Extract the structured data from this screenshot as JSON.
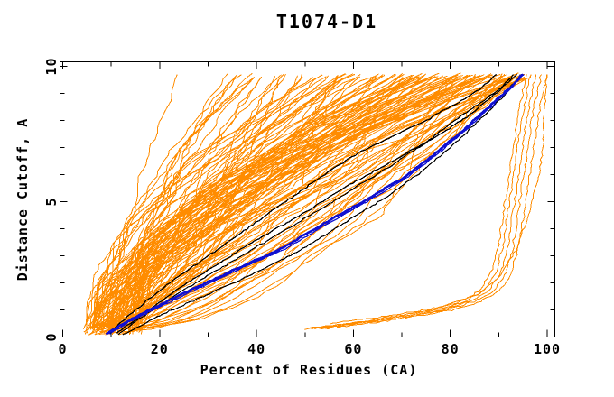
{
  "page": {
    "background_color": "#ffffff"
  },
  "chart_data": {
    "type": "line",
    "title": "T1074-D1",
    "xlabel": "Percent of Residues (CA)",
    "ylabel": "Distance Cutoff, A",
    "xlim": [
      0,
      100
    ],
    "ylim": [
      0,
      10
    ],
    "x_major_ticks": [
      0,
      20,
      40,
      60,
      80,
      100
    ],
    "x_minor_tick_step": 10,
    "y_major_ticks": [
      0,
      5,
      10
    ],
    "y_minor_tick_step": 1,
    "grid": false,
    "legend_position": "none",
    "frame": "full-box-with-inward-ticks",
    "colors": {
      "ensemble_orange": "#ff8c00",
      "highlight_blue": "#1010d0",
      "highlight_black": "#000000",
      "frame_black": "#000000",
      "background": "#ffffff"
    },
    "description": "Cumulative curves: percent of CA residues (x) under each distance cutoff in Angstroms (y). Large pool of thin orange model curves, a low bundle of orange outlier curves at lower right, three/four black curves and one thick blue curve highlighted.",
    "highlight_series": [
      {
        "name": "blue-main",
        "color": "#1010d0",
        "width": 2.6,
        "points": [
          [
            9,
            0.1
          ],
          [
            13,
            0.55
          ],
          [
            19,
            1.1
          ],
          [
            26,
            1.7
          ],
          [
            35,
            2.45
          ],
          [
            45,
            3.25
          ],
          [
            54,
            4.2
          ],
          [
            62,
            5.0
          ],
          [
            70,
            5.85
          ],
          [
            77,
            6.8
          ],
          [
            83,
            7.7
          ],
          [
            88,
            8.5
          ],
          [
            92,
            9.15
          ],
          [
            95,
            9.7
          ]
        ]
      },
      {
        "name": "blue-twin",
        "color": "#1010d0",
        "width": 1.3,
        "points": [
          [
            9.6,
            0.1
          ],
          [
            13.7,
            0.55
          ],
          [
            19.8,
            1.1
          ],
          [
            26.9,
            1.7
          ],
          [
            35.9,
            2.45
          ],
          [
            45.9,
            3.25
          ],
          [
            54.8,
            4.2
          ],
          [
            62.8,
            5.0
          ],
          [
            70.7,
            5.85
          ],
          [
            77.6,
            6.8
          ],
          [
            83.5,
            7.7
          ],
          [
            88.4,
            8.5
          ],
          [
            92.3,
            9.15
          ],
          [
            95.2,
            9.7
          ]
        ]
      },
      {
        "name": "black-1",
        "color": "#000000",
        "width": 1.3,
        "points": [
          [
            10,
            0.2
          ],
          [
            15,
            1.0
          ],
          [
            22,
            2.0
          ],
          [
            30,
            3.0
          ],
          [
            38,
            4.0
          ],
          [
            46,
            5.0
          ],
          [
            54,
            6.0
          ],
          [
            61,
            6.8
          ],
          [
            68,
            7.4
          ],
          [
            75,
            8.0
          ],
          [
            81,
            8.6
          ],
          [
            86,
            9.15
          ],
          [
            89.5,
            9.7
          ]
        ]
      },
      {
        "name": "black-2",
        "color": "#000000",
        "width": 1.3,
        "points": [
          [
            11,
            0.12
          ],
          [
            17,
            0.9
          ],
          [
            24,
            1.8
          ],
          [
            32,
            2.7
          ],
          [
            41,
            3.7
          ],
          [
            50,
            4.6
          ],
          [
            58,
            5.5
          ],
          [
            65,
            6.2
          ],
          [
            71,
            6.8
          ],
          [
            78,
            7.5
          ],
          [
            84,
            8.2
          ],
          [
            90,
            9.1
          ],
          [
            93,
            9.7
          ]
        ]
      },
      {
        "name": "black-3",
        "color": "#000000",
        "width": 1.2,
        "points": [
          [
            11.5,
            0.1
          ],
          [
            18,
            0.95
          ],
          [
            26,
            1.85
          ],
          [
            35,
            2.8
          ],
          [
            44,
            3.75
          ],
          [
            53,
            4.7
          ],
          [
            61,
            5.6
          ],
          [
            68,
            6.35
          ],
          [
            75,
            7.2
          ],
          [
            81,
            8.0
          ],
          [
            87,
            8.75
          ],
          [
            92,
            9.4
          ],
          [
            93.8,
            9.7
          ]
        ]
      },
      {
        "name": "black-4",
        "color": "#000000",
        "width": 1.2,
        "points": [
          [
            12.5,
            0.08
          ],
          [
            20,
            0.8
          ],
          [
            29,
            1.5
          ],
          [
            39,
            2.3
          ],
          [
            49,
            3.2
          ],
          [
            58,
            4.2
          ],
          [
            67,
            5.2
          ],
          [
            74,
            6.1
          ],
          [
            80,
            7.0
          ],
          [
            86,
            8.0
          ],
          [
            91,
            8.9
          ],
          [
            94.5,
            9.7
          ]
        ]
      }
    ],
    "ensemble": {
      "name": "model-pool-curves",
      "color": "#ff8c00",
      "count": 125,
      "seed": 1074,
      "start_percent_range": [
        4.5,
        16
      ],
      "end_percent_range": [
        23,
        96.5
      ],
      "start_cutoff_range": [
        0.08,
        0.4
      ],
      "end_cutoff_range": [
        9.55,
        9.75
      ],
      "shape_exponent_range": [
        0.5,
        2.1
      ],
      "jitter_percent": 0.9,
      "jitter_cutoff": 0.05,
      "samples_per_curve": 48
    },
    "outliers": {
      "name": "low-accuracy-outlier-bundle",
      "color": "#ff8c00",
      "base_points": [
        [
          50,
          0.3
        ],
        [
          56,
          0.45
        ],
        [
          63,
          0.6
        ],
        [
          70,
          0.8
        ],
        [
          76,
          1.0
        ],
        [
          82,
          1.3
        ],
        [
          86,
          1.7
        ],
        [
          88.5,
          2.4
        ],
        [
          90,
          3.4
        ],
        [
          91,
          4.6
        ],
        [
          92,
          5.8
        ],
        [
          93,
          7.0
        ],
        [
          94,
          8.2
        ],
        [
          95,
          9.1
        ],
        [
          95.8,
          9.7
        ]
      ],
      "copy_x_offsets": [
        0,
        0.9,
        1.9,
        3.0,
        4.2
      ],
      "edge_curve_points": [
        [
          55,
          0.5
        ],
        [
          66,
          0.75
        ],
        [
          78,
          1.1
        ],
        [
          86,
          1.6
        ],
        [
          90,
          2.2
        ],
        [
          93.5,
          3.2
        ],
        [
          96,
          4.4
        ],
        [
          97.5,
          5.4
        ],
        [
          98.6,
          6.3
        ],
        [
          99.2,
          7.2
        ],
        [
          99.4,
          8.2
        ],
        [
          99.7,
          9.0
        ],
        [
          99.9,
          9.7
        ]
      ]
    }
  }
}
